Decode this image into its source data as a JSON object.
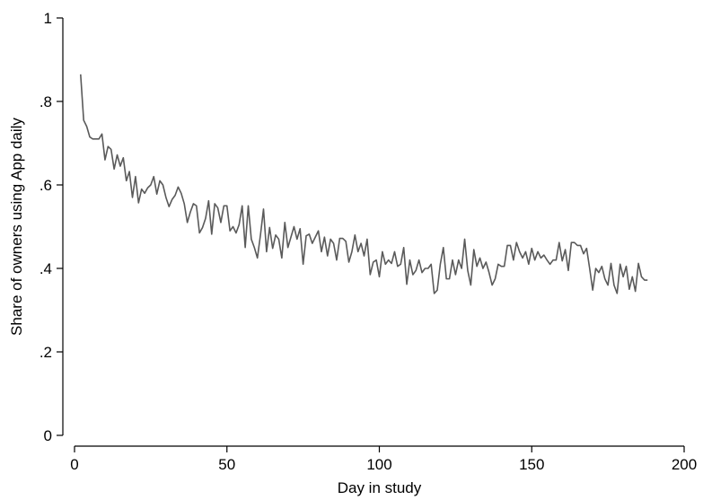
{
  "chart_data": {
    "type": "line",
    "title": "",
    "xlabel": "Day in study",
    "ylabel": "Share of owners using App daily",
    "xlim": [
      0,
      200
    ],
    "ylim": [
      0,
      1
    ],
    "x_ticks": [
      0,
      50,
      100,
      150,
      200
    ],
    "x_tick_labels": [
      "0",
      "50",
      "100",
      "150",
      "200"
    ],
    "y_ticks": [
      0,
      0.2,
      0.4,
      0.6,
      0.8,
      1
    ],
    "y_tick_labels": [
      "0",
      ".2",
      ".4",
      ".6",
      ".8",
      "1"
    ],
    "grid": false,
    "legend": "none",
    "colors": {
      "line": "#5a5a5a",
      "axis": "#000000"
    },
    "series": [
      {
        "x_start": 2,
        "x_step": 1,
        "values": [
          0.865,
          0.755,
          0.74,
          0.715,
          0.71,
          0.71,
          0.71,
          0.722,
          0.66,
          0.692,
          0.685,
          0.638,
          0.672,
          0.645,
          0.665,
          0.61,
          0.632,
          0.57,
          0.62,
          0.557,
          0.59,
          0.58,
          0.593,
          0.6,
          0.62,
          0.578,
          0.61,
          0.6,
          0.57,
          0.548,
          0.565,
          0.575,
          0.595,
          0.58,
          0.555,
          0.51,
          0.535,
          0.555,
          0.55,
          0.485,
          0.498,
          0.52,
          0.562,
          0.482,
          0.555,
          0.545,
          0.51,
          0.55,
          0.55,
          0.49,
          0.5,
          0.485,
          0.505,
          0.55,
          0.45,
          0.55,
          0.47,
          0.45,
          0.425,
          0.48,
          0.542,
          0.44,
          0.498,
          0.448,
          0.48,
          0.47,
          0.425,
          0.51,
          0.45,
          0.475,
          0.5,
          0.47,
          0.495,
          0.41,
          0.478,
          0.482,
          0.46,
          0.475,
          0.49,
          0.44,
          0.475,
          0.43,
          0.47,
          0.46,
          0.42,
          0.472,
          0.472,
          0.465,
          0.415,
          0.44,
          0.48,
          0.44,
          0.46,
          0.43,
          0.47,
          0.385,
          0.415,
          0.42,
          0.38,
          0.44,
          0.41,
          0.42,
          0.412,
          0.44,
          0.405,
          0.41,
          0.45,
          0.362,
          0.42,
          0.385,
          0.395,
          0.42,
          0.39,
          0.4,
          0.4,
          0.41,
          0.34,
          0.348,
          0.41,
          0.45,
          0.375,
          0.375,
          0.42,
          0.385,
          0.42,
          0.4,
          0.47,
          0.395,
          0.36,
          0.445,
          0.405,
          0.425,
          0.4,
          0.415,
          0.39,
          0.36,
          0.375,
          0.41,
          0.405,
          0.405,
          0.455,
          0.455,
          0.42,
          0.462,
          0.44,
          0.425,
          0.44,
          0.41,
          0.448,
          0.42,
          0.44,
          0.425,
          0.432,
          0.42,
          0.41,
          0.42,
          0.42,
          0.462,
          0.418,
          0.445,
          0.395,
          0.462,
          0.462,
          0.455,
          0.455,
          0.435,
          0.448,
          0.4,
          0.348,
          0.4,
          0.39,
          0.405,
          0.375,
          0.36,
          0.412,
          0.36,
          0.34,
          0.41,
          0.38,
          0.405,
          0.35,
          0.38,
          0.345,
          0.412,
          0.38,
          0.372,
          0.372
        ]
      }
    ]
  }
}
